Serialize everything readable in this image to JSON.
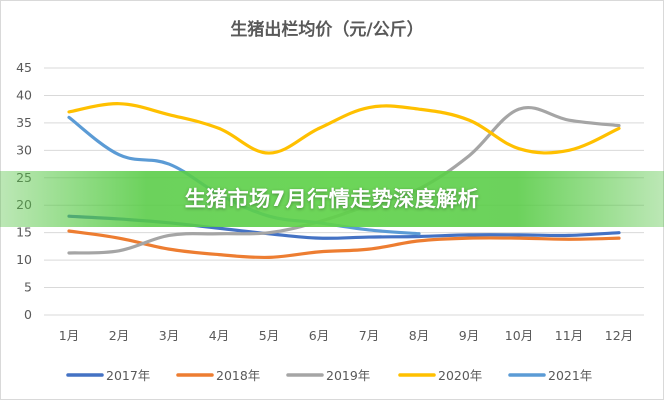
{
  "overlay": {
    "headline": "生猪市场7月行情走势深度解析"
  },
  "chart_data": {
    "type": "line",
    "title": "生猪出栏均价（元/公斤）",
    "categories": [
      "1月",
      "2月",
      "3月",
      "4月",
      "5月",
      "6月",
      "7月",
      "8月",
      "9月",
      "10月",
      "11月",
      "12月"
    ],
    "y_ticks": [
      0,
      5,
      10,
      15,
      20,
      25,
      30,
      35,
      40,
      45
    ],
    "ylim": [
      0,
      45
    ],
    "grid": true,
    "legend_position": "bottom",
    "series": [
      {
        "name": "2017年",
        "color": "#4472C4",
        "values": [
          18.0,
          17.5,
          16.8,
          15.8,
          14.8,
          14.0,
          14.2,
          14.3,
          14.6,
          14.6,
          14.5,
          15.0
        ]
      },
      {
        "name": "2018年",
        "color": "#ED7D31",
        "values": [
          15.3,
          14.0,
          12.0,
          11.0,
          10.5,
          11.5,
          12.0,
          13.5,
          14.0,
          14.0,
          13.8,
          14.0
        ]
      },
      {
        "name": "2019年",
        "color": "#A5A5A5",
        "values": [
          11.3,
          11.7,
          14.5,
          14.8,
          15.0,
          17.0,
          20.0,
          23.0,
          29.0,
          37.5,
          35.5,
          34.5
        ]
      },
      {
        "name": "2020年",
        "color": "#FFC000",
        "values": [
          37.0,
          38.5,
          36.5,
          34.0,
          29.5,
          34.0,
          37.8,
          37.5,
          35.5,
          30.3,
          30.0,
          34.0
        ]
      },
      {
        "name": "2021年",
        "color": "#5B9BD5",
        "values": [
          36.0,
          29.2,
          27.5,
          22.0,
          18.0,
          16.8,
          15.5,
          14.8,
          null,
          null,
          null,
          null
        ]
      }
    ]
  }
}
